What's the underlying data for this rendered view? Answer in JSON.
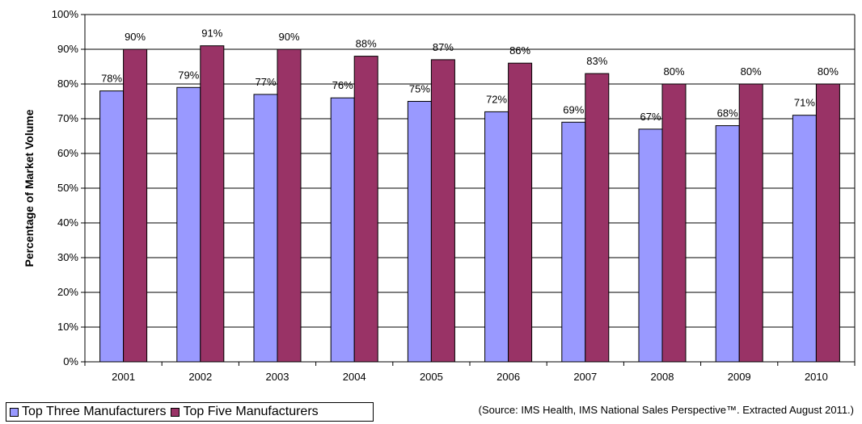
{
  "chart_data": {
    "type": "bar",
    "categories": [
      "2001",
      "2002",
      "2003",
      "2004",
      "2005",
      "2006",
      "2007",
      "2008",
      "2009",
      "2010"
    ],
    "series": [
      {
        "name": "Top Three Manufacturers",
        "color": "#9999FF",
        "values": [
          78,
          79,
          77,
          76,
          75,
          72,
          69,
          67,
          68,
          71
        ],
        "labels": [
          "78%",
          "79%",
          "77%",
          "76%",
          "75%",
          "72%",
          "69%",
          "67%",
          "68%",
          "71%"
        ]
      },
      {
        "name": "Top Five Manufacturers",
        "color": "#993366",
        "values": [
          90,
          91,
          90,
          88,
          87,
          86,
          83,
          80,
          80,
          80
        ],
        "labels": [
          "90%",
          "91%",
          "90%",
          "88%",
          "87%",
          "86%",
          "83%",
          "80%",
          "80%",
          "80%"
        ]
      }
    ],
    "ylabel": "Percentage of Market Volume",
    "ylim": [
      0,
      100
    ],
    "yticks": [
      0,
      10,
      20,
      30,
      40,
      50,
      60,
      70,
      80,
      90,
      100
    ],
    "ytick_labels": [
      "0%",
      "10%",
      "20%",
      "30%",
      "40%",
      "50%",
      "60%",
      "70%",
      "80%",
      "90%",
      "100%"
    ],
    "grid": true,
    "legend_position": "bottom-left"
  },
  "legend": {
    "top_three": "Top Three Manufacturers",
    "top_five": "Top Five Manufacturers"
  },
  "source_note": "(Source: IMS Health, IMS National Sales Perspective™. Extracted August 2011.)"
}
